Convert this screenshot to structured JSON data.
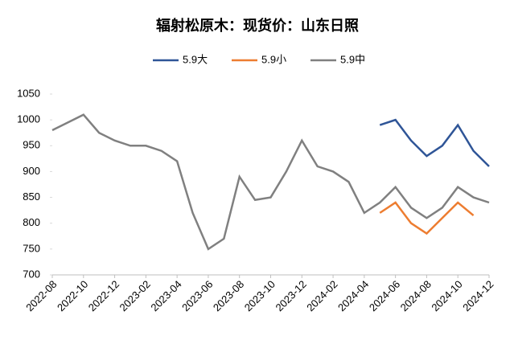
{
  "chart_data": {
    "type": "line",
    "title": "辐射松原木：现货价：山东日照",
    "x": [
      "2022-08",
      "2022-09",
      "2022-10",
      "2022-11",
      "2022-12",
      "2023-01",
      "2023-02",
      "2023-03",
      "2023-04",
      "2023-05",
      "2023-06",
      "2023-07",
      "2023-08",
      "2023-09",
      "2023-10",
      "2023-11",
      "2023-12",
      "2024-01",
      "2024-02",
      "2024-03",
      "2024-04",
      "2024-05",
      "2024-06",
      "2024-07",
      "2024-08",
      "2024-09",
      "2024-10",
      "2024-11",
      "2024-12"
    ],
    "series": [
      {
        "name": "5.9大",
        "color": "#2f5597",
        "values": [
          null,
          null,
          null,
          null,
          null,
          null,
          null,
          null,
          null,
          null,
          null,
          null,
          null,
          null,
          null,
          null,
          null,
          null,
          null,
          null,
          null,
          990,
          1000,
          960,
          930,
          950,
          990,
          940,
          910
        ]
      },
      {
        "name": "5.9小",
        "color": "#ed7d31",
        "values": [
          null,
          null,
          null,
          null,
          null,
          null,
          null,
          null,
          null,
          null,
          null,
          null,
          null,
          null,
          null,
          null,
          null,
          null,
          null,
          null,
          null,
          820,
          840,
          800,
          780,
          810,
          840,
          815,
          null
        ]
      },
      {
        "name": "5.9中",
        "color": "#808080",
        "values": [
          980,
          995,
          1010,
          975,
          960,
          950,
          950,
          940,
          920,
          820,
          750,
          770,
          890,
          845,
          850,
          900,
          960,
          910,
          900,
          880,
          820,
          840,
          870,
          830,
          810,
          830,
          870,
          850,
          840
        ]
      }
    ],
    "ylim": [
      700,
      1050
    ],
    "yticks": [
      700,
      750,
      800,
      850,
      900,
      950,
      1000,
      1050
    ],
    "legend": "top"
  }
}
